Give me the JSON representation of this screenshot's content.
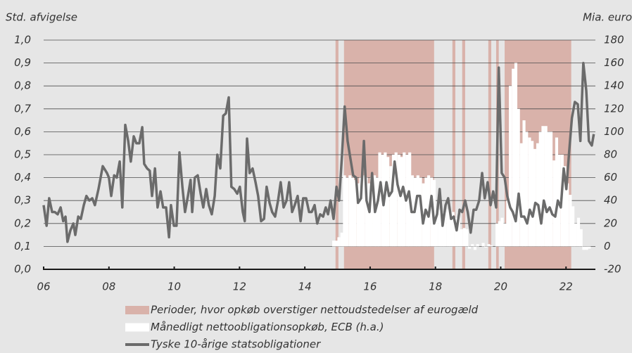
{
  "chart_data": {
    "type": "line",
    "y_label": "Std. afvigelse",
    "y2_label": "Mia. euro",
    "xlim": [
      2006,
      2022.9
    ],
    "xticks": [
      {
        "value": 2006,
        "label": "06"
      },
      {
        "value": 2008,
        "label": "08"
      },
      {
        "value": 2010,
        "label": "10"
      },
      {
        "value": 2012,
        "label": "12"
      },
      {
        "value": 2014,
        "label": "14"
      },
      {
        "value": 2016,
        "label": "16"
      },
      {
        "value": 2018,
        "label": "18"
      },
      {
        "value": 2020,
        "label": "20"
      },
      {
        "value": 2022,
        "label": "22"
      }
    ],
    "ylim": [
      0,
      1
    ],
    "yticks": [
      {
        "value": 0,
        "label": "0,0"
      },
      {
        "value": 0.1,
        "label": "0,1"
      },
      {
        "value": 0.2,
        "label": "0,2"
      },
      {
        "value": 0.3,
        "label": "0,3"
      },
      {
        "value": 0.4,
        "label": "0,4"
      },
      {
        "value": 0.5,
        "label": "0,5"
      },
      {
        "value": 0.6,
        "label": "0,6"
      },
      {
        "value": 0.7,
        "label": "0,7"
      },
      {
        "value": 0.8,
        "label": "0,8"
      },
      {
        "value": 0.9,
        "label": "0,9"
      },
      {
        "value": 1,
        "label": "1,0"
      }
    ],
    "y2lim": [
      -20,
      180
    ],
    "y2ticks": [
      -20,
      0,
      20,
      40,
      60,
      80,
      100,
      120,
      140,
      160,
      180
    ],
    "grid": true,
    "legend": "bottom",
    "series": [
      {
        "name": "Perioder, hvor opkøb overstiger nettoudstedelser af eurogæld",
        "type": "span",
        "color": "#d9b2aa",
        "spans": [
          [
            2014.94,
            2015.03
          ],
          [
            2015.2,
            2017.96
          ],
          [
            2018.52,
            2018.61
          ],
          [
            2018.82,
            2018.91
          ],
          [
            2019.62,
            2019.71
          ],
          [
            2019.86,
            2019.94
          ],
          [
            2020.12,
            2022.16
          ]
        ]
      },
      {
        "name": "Månedligt nettoobligationsopkøb, ECB (h.a.)",
        "type": "bar",
        "axis": "y2",
        "color": "#ffffff",
        "x": [
          2014.88,
          2014.96,
          2015.04,
          2015.13,
          2015.21,
          2015.29,
          2015.38,
          2015.46,
          2015.54,
          2015.63,
          2015.71,
          2015.79,
          2015.88,
          2015.96,
          2016.04,
          2016.13,
          2016.21,
          2016.29,
          2016.38,
          2016.46,
          2016.54,
          2016.63,
          2016.71,
          2016.79,
          2016.88,
          2016.96,
          2017.04,
          2017.13,
          2017.21,
          2017.29,
          2017.38,
          2017.46,
          2017.54,
          2017.63,
          2017.71,
          2017.79,
          2017.88,
          2017.96,
          2018.04,
          2018.13,
          2018.21,
          2018.29,
          2018.38,
          2018.46,
          2018.54,
          2018.63,
          2018.71,
          2018.79,
          2018.88,
          2018.96,
          2019.04,
          2019.13,
          2019.21,
          2019.29,
          2019.38,
          2019.46,
          2019.54,
          2019.63,
          2019.71,
          2019.79,
          2019.88,
          2019.96,
          2020.04,
          2020.13,
          2020.21,
          2020.29,
          2020.38,
          2020.46,
          2020.54,
          2020.63,
          2020.71,
          2020.79,
          2020.88,
          2020.96,
          2021.04,
          2021.13,
          2021.21,
          2021.29,
          2021.38,
          2021.46,
          2021.54,
          2021.63,
          2021.71,
          2021.79,
          2021.88,
          2021.96,
          2022.04,
          2022.13,
          2022.21,
          2022.29,
          2022.38,
          2022.46,
          2022.54,
          2022.63,
          2022.71
        ],
        "values": [
          5,
          5,
          8,
          12,
          62,
          60,
          62,
          60,
          58,
          55,
          60,
          62,
          60,
          55,
          60,
          62,
          60,
          82,
          80,
          82,
          78,
          70,
          80,
          82,
          80,
          78,
          82,
          80,
          82,
          62,
          60,
          62,
          60,
          55,
          60,
          62,
          60,
          58,
          30,
          32,
          30,
          30,
          32,
          28,
          30,
          25,
          30,
          15,
          16,
          15,
          -2,
          2,
          -3,
          2,
          0,
          3,
          -1,
          2,
          1,
          0,
          20,
          22,
          25,
          20,
          40,
          140,
          155,
          160,
          120,
          90,
          110,
          100,
          95,
          92,
          85,
          90,
          100,
          105,
          105,
          100,
          100,
          75,
          95,
          80,
          80,
          70,
          55,
          45,
          35,
          20,
          25,
          15,
          -3,
          -3,
          -2
        ]
      },
      {
        "name": "Tyske 10-årige statsobligationer",
        "type": "line",
        "color": "#6b6b6b",
        "x": [
          2006.0,
          2006.09,
          2006.17,
          2006.26,
          2006.34,
          2006.43,
          2006.52,
          2006.6,
          2006.67,
          2006.73,
          2006.82,
          2006.91,
          2006.97,
          2007.06,
          2007.14,
          2007.23,
          2007.31,
          2007.4,
          2007.49,
          2007.57,
          2007.68,
          2007.81,
          2007.94,
          2008.0,
          2008.07,
          2008.16,
          2008.24,
          2008.33,
          2008.41,
          2008.5,
          2008.59,
          2008.67,
          2008.76,
          2008.84,
          2008.93,
          2009.02,
          2009.08,
          2009.17,
          2009.25,
          2009.32,
          2009.41,
          2009.49,
          2009.58,
          2009.66,
          2009.75,
          2009.84,
          2009.9,
          2009.99,
          2010.07,
          2010.16,
          2010.25,
          2010.33,
          2010.42,
          2010.5,
          2010.55,
          2010.63,
          2010.72,
          2010.81,
          2010.89,
          2010.98,
          2011.06,
          2011.15,
          2011.24,
          2011.32,
          2011.41,
          2011.5,
          2011.58,
          2011.67,
          2011.75,
          2011.84,
          2011.93,
          2012.01,
          2012.1,
          2012.16,
          2012.23,
          2012.31,
          2012.4,
          2012.49,
          2012.57,
          2012.66,
          2012.75,
          2012.83,
          2012.92,
          2013.0,
          2013.09,
          2013.18,
          2013.26,
          2013.35,
          2013.44,
          2013.52,
          2013.61,
          2013.69,
          2013.78,
          2013.87,
          2013.95,
          2014.04,
          2014.13,
          2014.21,
          2014.3,
          2014.38,
          2014.47,
          2014.56,
          2014.64,
          2014.71,
          2014.79,
          2014.88,
          2014.97,
          2015.05,
          2015.14,
          2015.22,
          2015.31,
          2015.4,
          2015.48,
          2015.57,
          2015.63,
          2015.72,
          2015.81,
          2015.89,
          2015.98,
          2016.06,
          2016.15,
          2016.24,
          2016.32,
          2016.41,
          2016.5,
          2016.58,
          2016.67,
          2016.75,
          2016.84,
          2016.93,
          2017.01,
          2017.1,
          2017.19,
          2017.27,
          2017.36,
          2017.44,
          2017.53,
          2017.62,
          2017.7,
          2017.79,
          2017.88,
          2017.96,
          2018.05,
          2018.13,
          2018.22,
          2018.31,
          2018.39,
          2018.48,
          2018.56,
          2018.65,
          2018.74,
          2018.82,
          2018.91,
          2018.99,
          2019.08,
          2019.17,
          2019.25,
          2019.34,
          2019.43,
          2019.51,
          2019.6,
          2019.69,
          2019.77,
          2019.86,
          2019.94,
          2020.03,
          2020.12,
          2020.2,
          2020.29,
          2020.37,
          2020.46,
          2020.55,
          2020.63,
          2020.72,
          2020.81,
          2020.89,
          2020.98,
          2021.06,
          2021.15,
          2021.24,
          2021.32,
          2021.41,
          2021.5,
          2021.58,
          2021.67,
          2021.75,
          2021.84,
          2021.93,
          2022.01,
          2022.1,
          2022.18,
          2022.27,
          2022.36,
          2022.44,
          2022.53,
          2022.62,
          2022.7,
          2022.79,
          2022.85
        ],
        "values": [
          0.28,
          0.19,
          0.31,
          0.25,
          0.25,
          0.24,
          0.27,
          0.21,
          0.23,
          0.12,
          0.17,
          0.2,
          0.15,
          0.23,
          0.22,
          0.28,
          0.32,
          0.3,
          0.31,
          0.28,
          0.35,
          0.45,
          0.42,
          0.4,
          0.32,
          0.41,
          0.4,
          0.47,
          0.27,
          0.63,
          0.56,
          0.47,
          0.58,
          0.55,
          0.55,
          0.62,
          0.46,
          0.44,
          0.43,
          0.32,
          0.44,
          0.27,
          0.34,
          0.27,
          0.27,
          0.14,
          0.28,
          0.19,
          0.19,
          0.51,
          0.36,
          0.25,
          0.32,
          0.39,
          0.25,
          0.4,
          0.41,
          0.33,
          0.27,
          0.35,
          0.28,
          0.24,
          0.32,
          0.5,
          0.44,
          0.67,
          0.68,
          0.75,
          0.36,
          0.35,
          0.33,
          0.36,
          0.25,
          0.21,
          0.57,
          0.42,
          0.44,
          0.38,
          0.32,
          0.21,
          0.22,
          0.36,
          0.29,
          0.25,
          0.23,
          0.3,
          0.38,
          0.27,
          0.3,
          0.38,
          0.25,
          0.28,
          0.32,
          0.21,
          0.31,
          0.31,
          0.25,
          0.25,
          0.28,
          0.2,
          0.24,
          0.23,
          0.27,
          0.24,
          0.3,
          0.22,
          0.36,
          0.3,
          0.5,
          0.71,
          0.56,
          0.48,
          0.41,
          0.4,
          0.29,
          0.31,
          0.56,
          0.3,
          0.25,
          0.42,
          0.25,
          0.3,
          0.38,
          0.28,
          0.38,
          0.32,
          0.34,
          0.47,
          0.37,
          0.32,
          0.36,
          0.3,
          0.34,
          0.25,
          0.25,
          0.32,
          0.32,
          0.2,
          0.26,
          0.23,
          0.32,
          0.2,
          0.24,
          0.35,
          0.19,
          0.28,
          0.31,
          0.22,
          0.23,
          0.17,
          0.26,
          0.25,
          0.3,
          0.25,
          0.16,
          0.26,
          0.26,
          0.3,
          0.42,
          0.31,
          0.38,
          0.28,
          0.34,
          0.27,
          0.88,
          0.42,
          0.4,
          0.32,
          0.27,
          0.25,
          0.21,
          0.33,
          0.23,
          0.23,
          0.2,
          0.26,
          0.23,
          0.29,
          0.28,
          0.2,
          0.3,
          0.25,
          0.27,
          0.24,
          0.23,
          0.3,
          0.27,
          0.44,
          0.35,
          0.52,
          0.66,
          0.73,
          0.72,
          0.56,
          0.9,
          0.78,
          0.56,
          0.54,
          0.59
        ]
      }
    ]
  }
}
